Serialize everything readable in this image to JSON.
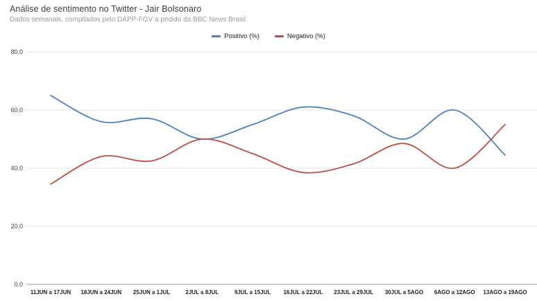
{
  "header": {
    "title": "Análise de sentimento no Twitter - Jair Bolsonaro",
    "subtitle": "Dados semanais, compilados pelo DAPP-FGV a pedido da BBC News Brasil"
  },
  "chart_data": {
    "type": "line",
    "title": "Análise de sentimento no Twitter - Jair Bolsonaro",
    "subtitle": "Dados semanais, compilados pelo DAPP-FGV a pedido da BBC News Brasil",
    "categories": [
      "11JUN a 17JUN",
      "18JUN a 24JUN",
      "25JUN a 1JUL",
      "2JUL a 8JUL",
      "9JUL a 15JUL",
      "16JUL a 22JUL",
      "23JUL a 29JUL",
      "30JUL a 5AGO",
      "6AGO a 12AGO",
      "13AGO a 19AGO"
    ],
    "series": [
      {
        "name": "Positivo (%)",
        "color": "#4d7ebf",
        "values": [
          65,
          56,
          57,
          50,
          55,
          61,
          58,
          50,
          60,
          44.5
        ]
      },
      {
        "name": "Negativo (%)",
        "color": "#bf4b41",
        "values": [
          34.5,
          44,
          42.5,
          50,
          45,
          38.5,
          41.5,
          48.5,
          40,
          55
        ]
      }
    ],
    "xlabel": "",
    "ylabel": "",
    "ylim": [
      0,
      80
    ],
    "yticks": [
      0,
      20,
      40,
      60,
      80
    ],
    "ytick_labels": [
      "0.0",
      "20.0",
      "40.0",
      "60.0",
      "80.0"
    ],
    "grid": true,
    "legend_position": "top-center",
    "smooth": true
  },
  "colors": {
    "background": "#ffffff",
    "gridline": "#e6e6e6",
    "axis_line": "#9b9b9b",
    "title_text": "#3d3d3d",
    "subtitle_text": "#9b9b9b",
    "tick_text": "#444444"
  }
}
